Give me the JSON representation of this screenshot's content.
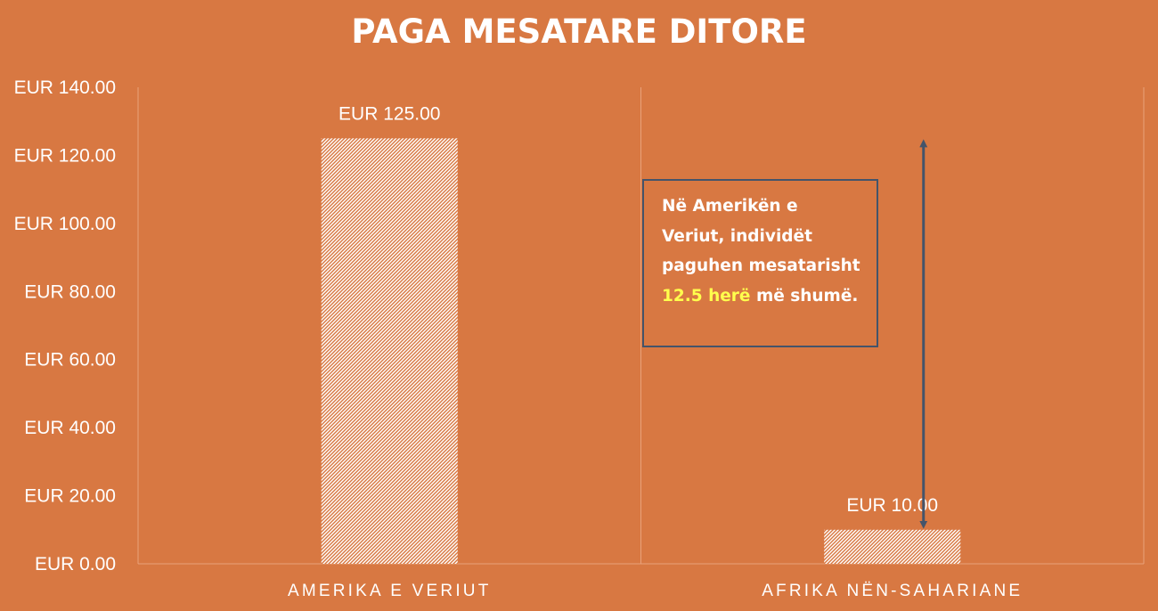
{
  "chart_data": {
    "type": "bar",
    "title": "PAGA MESATARE DITORE",
    "categories": [
      "AMERIKA E VERIUT",
      "AFRIKA NËN-SAHARIANE"
    ],
    "values": [
      125,
      10
    ],
    "data_labels": [
      "EUR 125.00",
      "EUR 10.00"
    ],
    "y_ticks": [
      0,
      20,
      40,
      60,
      80,
      100,
      120,
      140
    ],
    "y_tick_labels": [
      "EUR 0.00",
      "EUR 20.00",
      "EUR 40.00",
      "EUR 60.00",
      "EUR 80.00",
      "EUR 100.00",
      "EUR 120.00",
      "EUR 140.00"
    ],
    "ylim": [
      0,
      140
    ],
    "xlabel": "",
    "ylabel": "",
    "grid": "vertical category separators",
    "legend": "none",
    "bar_fill": "white diagonal hatch",
    "arrow_color": "#44546A",
    "arrow_range": [
      10,
      125
    ]
  },
  "annotation": {
    "text_before": "Në Amerikën e Veriut, individët paguhen mesatarisht",
    "highlight": "12.5 herë",
    "text_after": "më shumë.",
    "highlight_color": "#FFFF4D"
  },
  "colors": {
    "background": "#D87842",
    "text": "#FFFFFF"
  }
}
